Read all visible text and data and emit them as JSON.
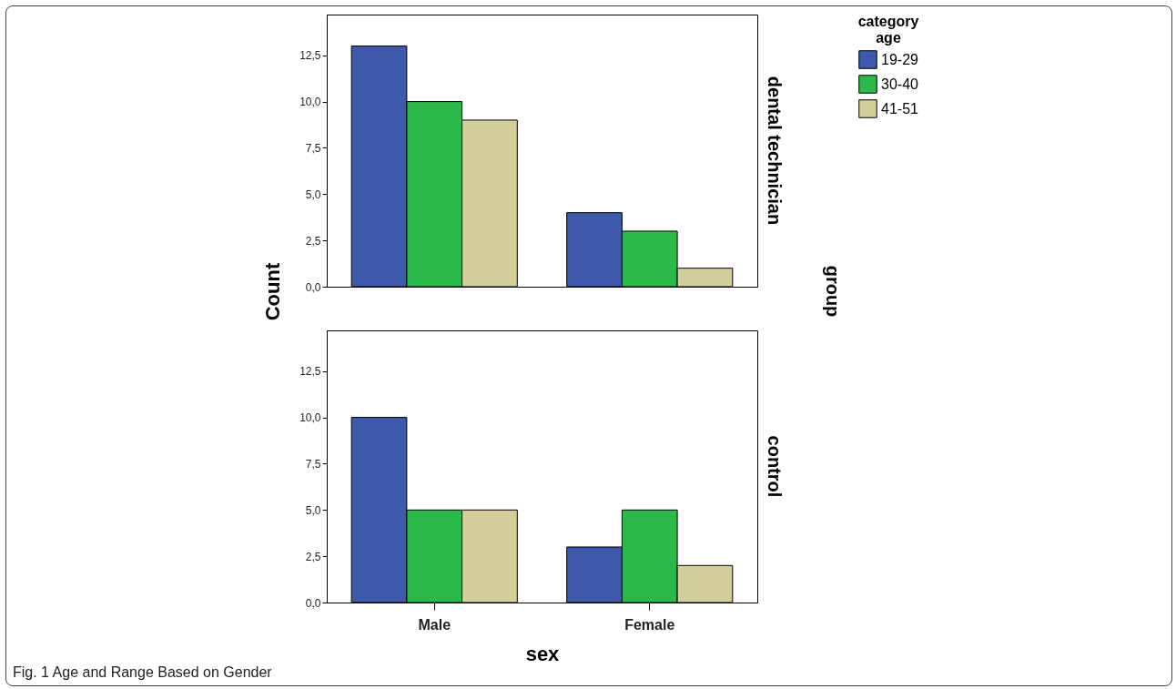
{
  "chart_data": [
    {
      "type": "bar",
      "categories": [
        null,
        null
      ],
      "series": [
        {
          "name": "19-29",
          "color": "#3e58ac",
          "values": [
            13,
            4
          ]
        },
        {
          "name": "30-40",
          "color": "#2db84b",
          "values": [
            10,
            3
          ]
        },
        {
          "name": "41-51",
          "color": "#d4cf9a",
          "values": [
            9,
            1
          ]
        }
      ],
      "ylabel": "Count",
      "y2label": "dental technician",
      "annotations": [
        "group"
      ],
      "legend": "right",
      "legend_title": "category age",
      "ylim": [
        0,
        14.7
      ],
      "yticks": [
        {
          "value": 0,
          "label": "0,0"
        },
        {
          "value": 2.5,
          "label": "2,5"
        },
        {
          "value": 5,
          "label": "5,0"
        },
        {
          "value": 7.5,
          "label": "7,5"
        },
        {
          "value": 10,
          "label": "10,0"
        },
        {
          "value": 12.5,
          "label": "12,5"
        }
      ],
      "tick_labels": "y",
      "grid": false
    },
    {
      "type": "bar",
      "categories": [
        "Male",
        "Female"
      ],
      "series": [
        {
          "name": "19-29",
          "color": "#3e58ac",
          "values": [
            10,
            3
          ]
        },
        {
          "name": "30-40",
          "color": "#2db84b",
          "values": [
            5,
            5
          ]
        },
        {
          "name": "41-51",
          "color": "#d4cf9a",
          "values": [
            5,
            2
          ]
        }
      ],
      "xlabel": "sex",
      "y2label": "control",
      "annotations": [
        "Fig. 1 Age and Range Based on Gender"
      ],
      "ylim": [
        0,
        14.7
      ],
      "yticks": [
        {
          "value": 0,
          "label": "0,0"
        },
        {
          "value": 2.5,
          "label": "2,5"
        },
        {
          "value": 5,
          "label": "5,0"
        },
        {
          "value": 7.5,
          "label": "7,5"
        },
        {
          "value": 10,
          "label": "10,0"
        },
        {
          "value": 12.5,
          "label": "12,5"
        }
      ],
      "grid": false
    }
  ]
}
